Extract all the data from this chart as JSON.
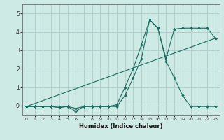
{
  "xlabel": "Humidex (Indice chaleur)",
  "bg_color": "#ceeae4",
  "grid_color": "#b0ceca",
  "line_color": "#1a6b60",
  "xlim": [
    -0.5,
    23.5
  ],
  "ylim": [
    -0.5,
    5.5
  ],
  "xticks": [
    0,
    1,
    2,
    3,
    4,
    5,
    6,
    7,
    8,
    9,
    10,
    11,
    12,
    13,
    14,
    15,
    16,
    17,
    18,
    19,
    20,
    21,
    22,
    23
  ],
  "yticks": [
    0,
    1,
    2,
    3,
    4,
    5
  ],
  "series1_x": [
    0,
    1,
    2,
    3,
    4,
    5,
    6,
    7,
    8,
    9,
    10,
    11,
    12,
    13,
    14,
    15,
    16,
    17,
    18,
    19,
    20,
    21,
    22,
    23
  ],
  "series1_y": [
    -0.05,
    -0.05,
    -0.05,
    -0.05,
    -0.1,
    -0.05,
    -0.15,
    -0.05,
    -0.05,
    -0.05,
    -0.05,
    -0.05,
    0.55,
    1.5,
    2.55,
    4.65,
    4.2,
    2.55,
    4.15,
    4.2,
    4.2,
    4.2,
    4.2,
    3.65
  ],
  "series2_x": [
    0,
    1,
    2,
    3,
    4,
    5,
    6,
    7,
    8,
    9,
    10,
    11,
    12,
    13,
    14,
    15,
    16,
    17,
    18,
    19,
    20,
    21,
    22,
    23
  ],
  "series2_y": [
    -0.05,
    -0.05,
    -0.05,
    -0.05,
    -0.1,
    -0.05,
    -0.3,
    -0.05,
    -0.05,
    -0.05,
    -0.05,
    0.05,
    1.0,
    2.0,
    3.3,
    4.65,
    4.2,
    2.4,
    1.5,
    0.55,
    -0.05,
    -0.05,
    -0.05,
    -0.05
  ],
  "series3_x": [
    0,
    23
  ],
  "series3_y": [
    -0.05,
    3.65
  ]
}
